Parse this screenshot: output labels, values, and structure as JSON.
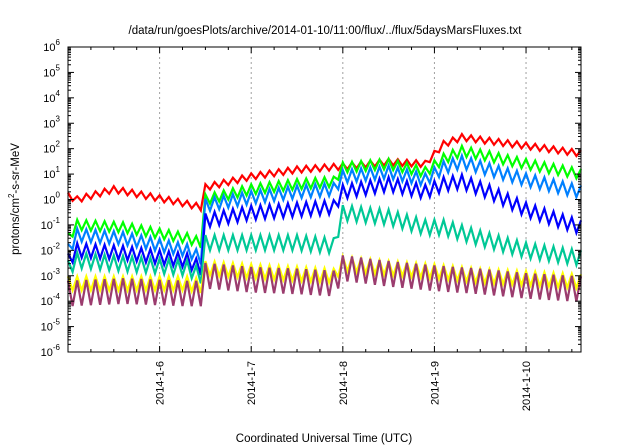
{
  "chart_data": {
    "type": "line",
    "title": "/data/run/goesPlots/archive/2014-01-10/11:00/flux/../flux/5daysMarsFluxes.txt",
    "xlabel": "Coordinated Universal Time (UTC)",
    "ylabel_parts": [
      "protons/cm",
      "2",
      "-s-sr-MeV"
    ],
    "yscale": "log",
    "ylim_exp": [
      -6,
      6
    ],
    "y_tick_base": "10",
    "y_tick_exponents": [
      "-6",
      "-5",
      "-4",
      "-3",
      "-2",
      "-1",
      "0",
      "1",
      "2",
      "3",
      "4",
      "5",
      "6"
    ],
    "xlim_days": [
      5.0,
      10.6
    ],
    "x_ticks": [
      {
        "day": 6,
        "label": "2014-1-6"
      },
      {
        "day": 7,
        "label": "2014-1-7"
      },
      {
        "day": 8,
        "label": "2014-1-8"
      },
      {
        "day": 9,
        "label": "2014-1-9"
      },
      {
        "day": 10,
        "label": "2014-1-10"
      }
    ],
    "grid": "dashed at x ticks",
    "legend": "none",
    "sawtooth_period_days": 0.1,
    "series": [
      {
        "color": "#ff0000",
        "amplitude_decades": 0.25,
        "baseline": [
          [
            5.0,
            1.4
          ],
          [
            5.1,
            1.0
          ],
          [
            5.5,
            2.5
          ],
          [
            6.2,
            0.8
          ],
          [
            6.45,
            0.5
          ],
          [
            6.5,
            3.0
          ],
          [
            7.0,
            8
          ],
          [
            7.5,
            15
          ],
          [
            8.0,
            20
          ],
          [
            8.5,
            30
          ],
          [
            8.9,
            25
          ],
          [
            9.1,
            150
          ],
          [
            9.3,
            280
          ],
          [
            9.6,
            200
          ],
          [
            10.0,
            130
          ],
          [
            10.6,
            65
          ]
        ]
      },
      {
        "color": "#00ff00",
        "amplitude_decades": 0.4,
        "baseline": [
          [
            5.0,
            0.03
          ],
          [
            5.1,
            0.1
          ],
          [
            5.6,
            0.08
          ],
          [
            6.3,
            0.03
          ],
          [
            6.45,
            0.02
          ],
          [
            6.5,
            1.0
          ],
          [
            7.0,
            2.5
          ],
          [
            7.5,
            4
          ],
          [
            7.9,
            5
          ],
          [
            8.0,
            18
          ],
          [
            8.5,
            25
          ],
          [
            8.9,
            12
          ],
          [
            9.1,
            40
          ],
          [
            9.3,
            80
          ],
          [
            9.6,
            50
          ],
          [
            10.0,
            25
          ],
          [
            10.6,
            10
          ]
        ]
      },
      {
        "color": "#0080ff",
        "amplitude_decades": 0.5,
        "baseline": [
          [
            5.0,
            0.01
          ],
          [
            5.1,
            0.04
          ],
          [
            5.6,
            0.03
          ],
          [
            6.3,
            0.01
          ],
          [
            6.45,
            0.005
          ],
          [
            6.5,
            0.6
          ],
          [
            7.0,
            1.2
          ],
          [
            7.5,
            2
          ],
          [
            7.9,
            2.5
          ],
          [
            8.0,
            8
          ],
          [
            8.5,
            12
          ],
          [
            8.9,
            6
          ],
          [
            9.1,
            18
          ],
          [
            9.3,
            30
          ],
          [
            9.6,
            15
          ],
          [
            10.0,
            6
          ],
          [
            10.6,
            2
          ]
        ]
      },
      {
        "color": "#0000ff",
        "amplitude_decades": 0.55,
        "baseline": [
          [
            5.0,
            0.004
          ],
          [
            5.1,
            0.01
          ],
          [
            5.6,
            0.008
          ],
          [
            6.3,
            0.004
          ],
          [
            6.45,
            0.002
          ],
          [
            6.5,
            0.15
          ],
          [
            7.0,
            0.3
          ],
          [
            7.5,
            0.4
          ],
          [
            7.9,
            0.5
          ],
          [
            8.0,
            2
          ],
          [
            8.5,
            4
          ],
          [
            8.9,
            2
          ],
          [
            9.1,
            4
          ],
          [
            9.3,
            5
          ],
          [
            9.6,
            2
          ],
          [
            10.0,
            0.4
          ],
          [
            10.6,
            0.08
          ]
        ]
      },
      {
        "color": "#00c896",
        "amplitude_decades": 0.6,
        "baseline": [
          [
            5.0,
            0.002
          ],
          [
            5.1,
            0.004
          ],
          [
            5.6,
            0.003
          ],
          [
            6.3,
            0.002
          ],
          [
            6.45,
            0.001
          ],
          [
            6.5,
            0.02
          ],
          [
            7.0,
            0.02
          ],
          [
            7.5,
            0.02
          ],
          [
            7.9,
            0.015
          ],
          [
            8.0,
            0.3
          ],
          [
            8.5,
            0.2
          ],
          [
            8.9,
            0.08
          ],
          [
            9.1,
            0.08
          ],
          [
            9.5,
            0.03
          ],
          [
            10.0,
            0.01
          ],
          [
            10.6,
            0.005
          ]
        ]
      },
      {
        "color": "#ffff00",
        "amplitude_decades": 0.55,
        "baseline": [
          [
            5.0,
            0.0005
          ],
          [
            5.6,
            0.0005
          ],
          [
            6.3,
            0.0005
          ],
          [
            6.45,
            0.0004
          ],
          [
            6.5,
            0.002
          ],
          [
            7.0,
            0.0015
          ],
          [
            7.5,
            0.0012
          ],
          [
            7.9,
            0.001
          ],
          [
            8.0,
            0.003
          ],
          [
            8.5,
            0.002
          ],
          [
            9.0,
            0.0015
          ],
          [
            9.5,
            0.001
          ],
          [
            10.0,
            0.0008
          ],
          [
            10.6,
            0.0006
          ]
        ]
      },
      {
        "color": "#9b3c6e",
        "amplitude_decades": 1.0,
        "baseline": [
          [
            5.0,
            0.0002
          ],
          [
            5.6,
            0.00025
          ],
          [
            6.3,
            0.0002
          ],
          [
            6.45,
            0.0002
          ],
          [
            6.5,
            0.001
          ],
          [
            7.0,
            0.0007
          ],
          [
            7.5,
            0.0006
          ],
          [
            7.9,
            0.0005
          ],
          [
            8.0,
            0.002
          ],
          [
            8.5,
            0.0012
          ],
          [
            9.0,
            0.0008
          ],
          [
            9.5,
            0.0006
          ],
          [
            10.0,
            0.0004
          ],
          [
            10.6,
            0.0003
          ]
        ]
      }
    ]
  }
}
